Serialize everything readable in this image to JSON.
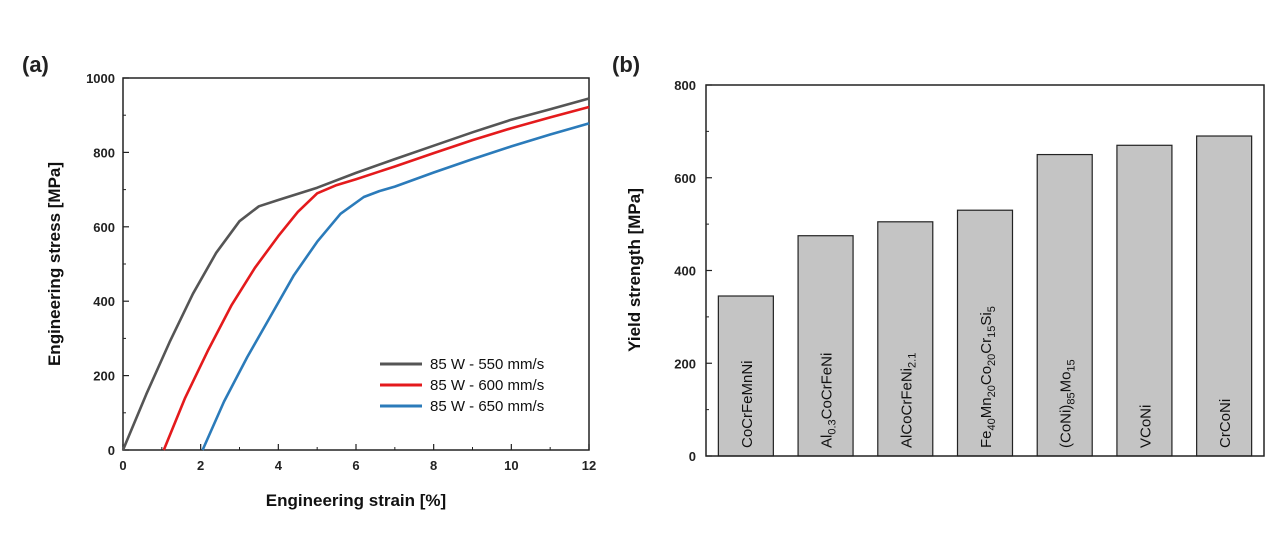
{
  "chart_data": [
    {
      "type": "line",
      "panel_label": "(a)",
      "xlabel": "Engineering strain [%]",
      "ylabel": "Engineering stress [MPa]",
      "xlim": [
        0,
        12
      ],
      "ylim": [
        0,
        1000
      ],
      "xticks": [
        "0",
        "2",
        "4",
        "6",
        "8",
        "10",
        "12"
      ],
      "yticks": [
        "0",
        "200",
        "400",
        "600",
        "800",
        "1000"
      ],
      "legend_position": "bottom-right",
      "series": [
        {
          "name": "85 W - 550 mm/s",
          "color": "#555555",
          "points": [
            [
              0,
              0
            ],
            [
              0.6,
              150
            ],
            [
              1.2,
              290
            ],
            [
              1.8,
              420
            ],
            [
              2.4,
              530
            ],
            [
              3.0,
              615
            ],
            [
              3.5,
              655
            ],
            [
              4.0,
              672
            ],
            [
              5.0,
              705
            ],
            [
              6.0,
              745
            ],
            [
              7.0,
              782
            ],
            [
              8.0,
              818
            ],
            [
              9.0,
              854
            ],
            [
              10.0,
              888
            ],
            [
              11.0,
              916
            ],
            [
              12.0,
              945
            ]
          ]
        },
        {
          "name": "85 W - 600 mm/s",
          "color": "#e41a1c",
          "points": [
            [
              1.05,
              0
            ],
            [
              1.6,
              140
            ],
            [
              2.2,
              270
            ],
            [
              2.8,
              390
            ],
            [
              3.4,
              490
            ],
            [
              4.0,
              575
            ],
            [
              4.5,
              640
            ],
            [
              5.0,
              690
            ],
            [
              5.5,
              712
            ],
            [
              6.0,
              728
            ],
            [
              7.0,
              762
            ],
            [
              8.0,
              798
            ],
            [
              9.0,
              833
            ],
            [
              10.0,
              865
            ],
            [
              11.0,
              894
            ],
            [
              12.0,
              922
            ]
          ]
        },
        {
          "name": "85 W - 650 mm/s",
          "color": "#2b7bba",
          "points": [
            [
              2.05,
              0
            ],
            [
              2.6,
              130
            ],
            [
              3.2,
              250
            ],
            [
              3.8,
              360
            ],
            [
              4.4,
              470
            ],
            [
              5.0,
              560
            ],
            [
              5.6,
              635
            ],
            [
              6.2,
              680
            ],
            [
              6.6,
              696
            ],
            [
              7.0,
              708
            ],
            [
              8.0,
              746
            ],
            [
              9.0,
              782
            ],
            [
              10.0,
              816
            ],
            [
              11.0,
              848
            ],
            [
              12.0,
              878
            ]
          ]
        }
      ]
    },
    {
      "type": "bar",
      "panel_label": "(b)",
      "xlabel": "",
      "ylabel": "Yield strength [MPa]",
      "ylim": [
        0,
        800
      ],
      "yticks": [
        "0",
        "200",
        "400",
        "600",
        "800"
      ],
      "bar_color": "#c4c4c4",
      "categories": [
        "CoCrFeMnNi",
        "Al0.3CoCrFeNi",
        "AlCoCrFeNi2.1",
        "Fe40Mn20Co20Cr15Si5",
        "(CoNi)85Mo15",
        "VCoNi",
        "CrCoNi"
      ],
      "category_segments": [
        [
          [
            "CoCrFeMnNi",
            ""
          ]
        ],
        [
          [
            "Al",
            ""
          ],
          [
            "0.3",
            "sub"
          ],
          [
            "CoCrFeNi",
            ""
          ]
        ],
        [
          [
            "AlCoCrFeNi",
            ""
          ],
          [
            "2.1",
            "sub"
          ]
        ],
        [
          [
            "Fe",
            ""
          ],
          [
            "40",
            "sub"
          ],
          [
            "Mn",
            ""
          ],
          [
            "20",
            "sub"
          ],
          [
            "Co",
            ""
          ],
          [
            "20",
            "sub"
          ],
          [
            "Cr",
            ""
          ],
          [
            "15",
            "sub"
          ],
          [
            "Si",
            ""
          ],
          [
            "5",
            "sub"
          ]
        ],
        [
          [
            "(CoNi)",
            ""
          ],
          [
            "85",
            "sub"
          ],
          [
            "Mo",
            ""
          ],
          [
            "15",
            "sub"
          ]
        ],
        [
          [
            "VCoNi",
            ""
          ]
        ],
        [
          [
            "CrCoNi",
            ""
          ]
        ]
      ],
      "values": [
        345,
        475,
        505,
        530,
        650,
        670,
        690
      ]
    }
  ]
}
